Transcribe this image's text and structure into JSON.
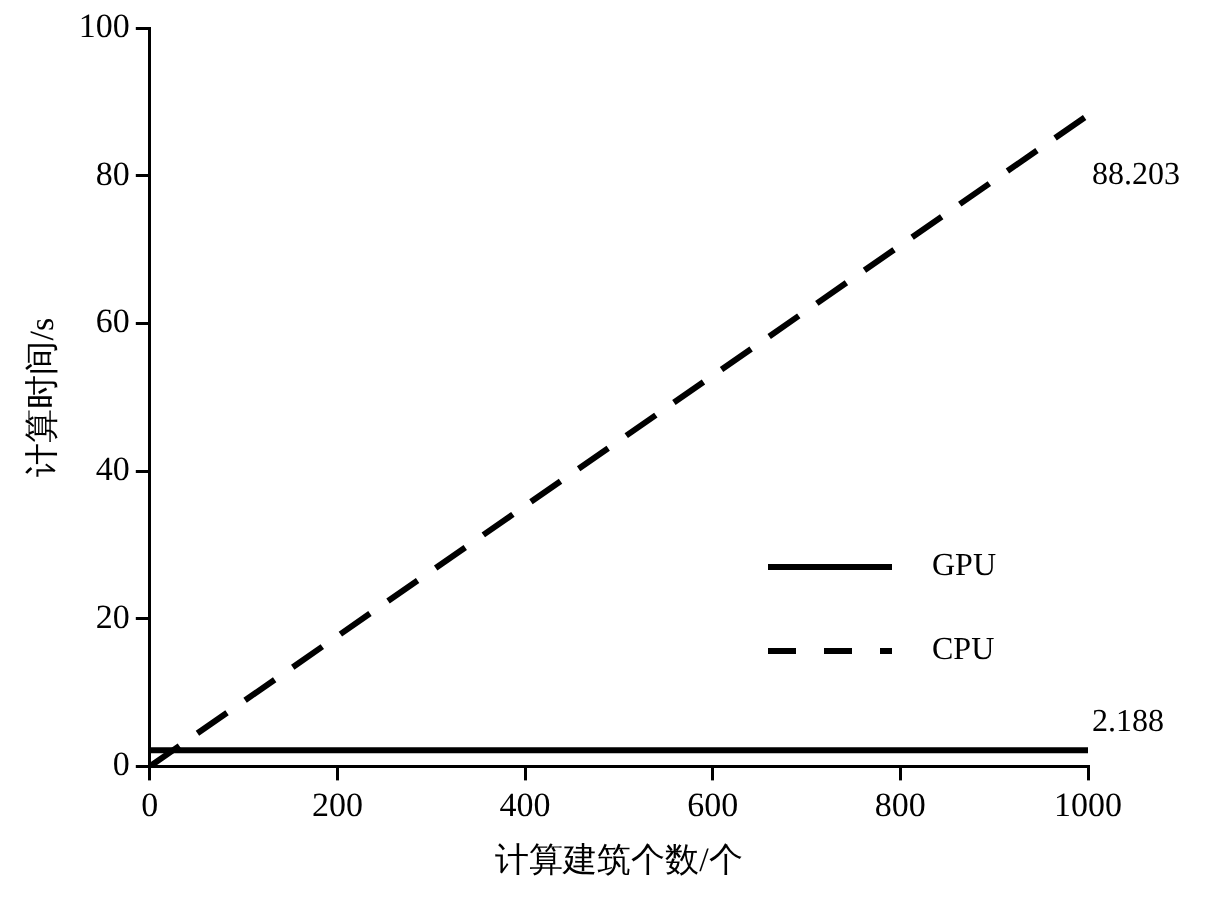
{
  "chart_data": {
    "type": "line",
    "xlabel": "计算建筑个数/个",
    "ylabel": "计算时间/s",
    "x": [
      0,
      1000
    ],
    "series": [
      {
        "name": "GPU",
        "color": "#000000",
        "line_style": "solid",
        "values": [
          2.188,
          2.188
        ],
        "value_labels": [
          null,
          "2.188"
        ]
      },
      {
        "name": "CPU",
        "color": "#000000",
        "line_style": "dashed",
        "values": [
          0,
          88.203
        ],
        "value_labels": [
          null,
          "88.203"
        ]
      }
    ],
    "xlim": [
      0,
      1000
    ],
    "xticks": [
      0,
      200,
      400,
      600,
      800,
      1000
    ],
    "ylim": [
      0,
      100
    ],
    "yticks": [
      0,
      20,
      40,
      60,
      80,
      100
    ],
    "grid": false,
    "legend": "right",
    "marker": "none"
  }
}
